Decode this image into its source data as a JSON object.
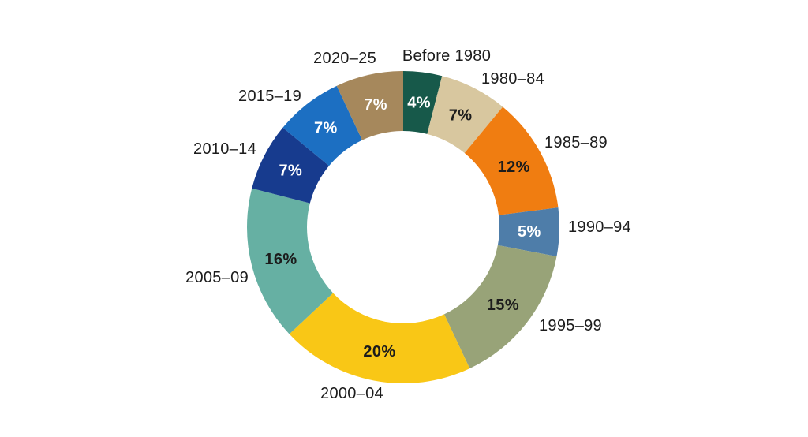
{
  "background_color": "#FFFFFF",
  "text_color": "#1C1C1C",
  "chart_data": {
    "type": "pie",
    "variant": "donut",
    "title": "",
    "legend": "none",
    "direction": "clockwise",
    "start_angle_deg": 0,
    "total": 100,
    "unit": "%",
    "segments": [
      {
        "label": "Before 1980",
        "value": 4,
        "value_label": "4%",
        "color": "#17594A",
        "value_text_color": "#FFFFFF"
      },
      {
        "label": "1980–84",
        "value": 7,
        "value_label": "7%",
        "color": "#D8C79F",
        "value_text_color": "#1C1C1C"
      },
      {
        "label": "1985–89",
        "value": 12,
        "value_label": "12%",
        "color": "#F07D11",
        "value_text_color": "#1C1C1C"
      },
      {
        "label": "1990–94",
        "value": 5,
        "value_label": "5%",
        "color": "#4E7DA9",
        "value_text_color": "#FFFFFF"
      },
      {
        "label": "1995–99",
        "value": 15,
        "value_label": "15%",
        "color": "#98A378",
        "value_text_color": "#1C1C1C"
      },
      {
        "label": "2000–04",
        "value": 20,
        "value_label": "20%",
        "color": "#F9C716",
        "value_text_color": "#1C1C1C"
      },
      {
        "label": "2005–09",
        "value": 16,
        "value_label": "16%",
        "color": "#66B0A3",
        "value_text_color": "#1C1C1C"
      },
      {
        "label": "2010–14",
        "value": 7,
        "value_label": "7%",
        "color": "#173B8E",
        "value_text_color": "#FFFFFF"
      },
      {
        "label": "2015–19",
        "value": 7,
        "value_label": "7%",
        "color": "#1C6FC2",
        "value_text_color": "#FFFFFF"
      },
      {
        "label": "2020–25",
        "value": 7,
        "value_label": "7%",
        "color": "#A6885C",
        "value_text_color": "#FFFFFF"
      }
    ]
  }
}
